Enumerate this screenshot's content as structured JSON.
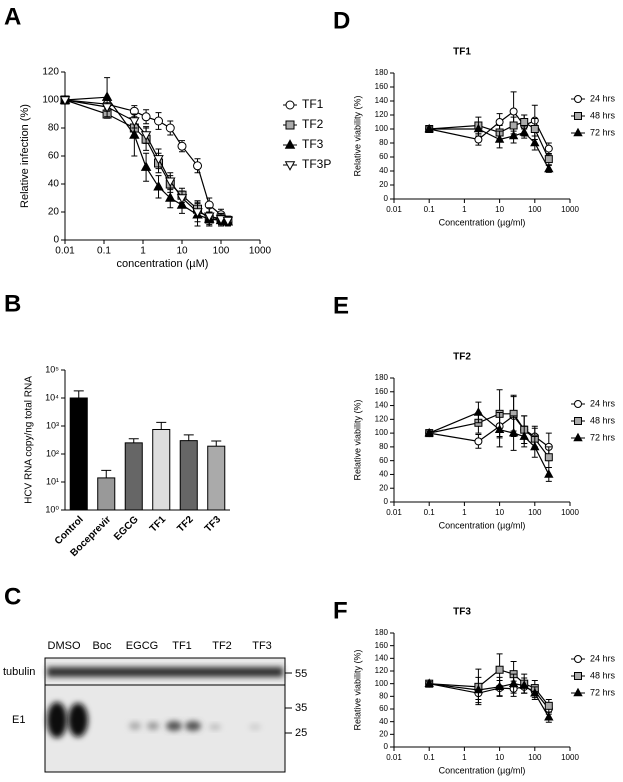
{
  "chart_data": [
    {
      "type": "line",
      "panel": "A",
      "x_label": "concentration (µM)",
      "y_label": "Relative infection (%)",
      "x_log": true,
      "xlim": [
        0.01,
        1000
      ],
      "xticks": [
        0.01,
        0.1,
        1,
        10,
        100,
        1000
      ],
      "ylim": [
        0,
        120
      ],
      "yticks": [
        0,
        20,
        40,
        60,
        80,
        100,
        120
      ],
      "legend": "right",
      "x": [
        0.01,
        0.12,
        0.6,
        1.2,
        2.5,
        5,
        10,
        25,
        50,
        100,
        150
      ],
      "series": [
        {
          "name": "TF1",
          "color": "#ffffff",
          "marker": "circle",
          "values": [
            100,
            97,
            92,
            88,
            85,
            80,
            67,
            53,
            25,
            18,
            13
          ],
          "errors": [
            2,
            3,
            4,
            5,
            6,
            5,
            4,
            5,
            5,
            4,
            3
          ]
        },
        {
          "name": "TF2",
          "color": "#aaaaaa",
          "marker": "square",
          "values": [
            100,
            90,
            80,
            72,
            55,
            40,
            32,
            22,
            15,
            15,
            14
          ],
          "errors": [
            2,
            3,
            6,
            8,
            7,
            6,
            5,
            6,
            5,
            4,
            3
          ]
        },
        {
          "name": "TF3",
          "color": "#000000",
          "marker": "triangle",
          "values": [
            100,
            102,
            75,
            52,
            38,
            30,
            25,
            18,
            15,
            14,
            13
          ],
          "errors": [
            2,
            14,
            15,
            10,
            8,
            7,
            6,
            8,
            5,
            4,
            3
          ]
        },
        {
          "name": "TF3P",
          "color": "#ffffff",
          "marker": "triangle-down",
          "values": [
            100,
            95,
            85,
            75,
            58,
            42,
            30,
            20,
            17,
            15,
            14
          ],
          "errors": [
            2,
            3,
            5,
            6,
            7,
            6,
            5,
            7,
            6,
            4,
            3
          ]
        }
      ]
    },
    {
      "type": "bar",
      "panel": "B",
      "y_label": "HCV RNA copy/ng total RNA",
      "y_log": true,
      "ylim": [
        1,
        100000
      ],
      "yticks": [
        {
          "value": 1,
          "label": "10⁰"
        },
        {
          "value": 10,
          "label": "10¹"
        },
        {
          "value": 100,
          "label": "10²"
        },
        {
          "value": 1000,
          "label": "10³"
        },
        {
          "value": 10000,
          "label": "10⁴"
        },
        {
          "value": 100000,
          "label": "10⁵"
        }
      ],
      "categories": [
        "Control",
        "Boceprevir",
        "EGCG",
        "TF1",
        "TF2",
        "TF3"
      ],
      "values": [
        10000,
        14,
        250,
        750,
        300,
        190
      ],
      "errors": [
        8000,
        12,
        100,
        600,
        180,
        100
      ],
      "colors": [
        "#000000",
        "#999999",
        "#666666",
        "#dddddd",
        "#666666",
        "#aaaaaa"
      ]
    },
    {
      "type": "line",
      "panel": "D",
      "title": "TF1",
      "x_label": "Concentration (µg/ml)",
      "y_label": "Relative viability (%)",
      "x_log": true,
      "xlim": [
        0.01,
        1000
      ],
      "xticks": [
        0.01,
        0.1,
        1,
        10,
        100,
        1000
      ],
      "ylim": [
        0,
        180
      ],
      "yticks": [
        0,
        20,
        40,
        60,
        80,
        100,
        120,
        140,
        160,
        180
      ],
      "legend": "right",
      "x": [
        0.1,
        2.5,
        10,
        25,
        50,
        100,
        250
      ],
      "series": [
        {
          "name": "24 hrs",
          "color": "#ffffff",
          "marker": "circle",
          "values": [
            100,
            85,
            110,
            125,
            105,
            112,
            72
          ],
          "errors": [
            3,
            8,
            12,
            28,
            15,
            22,
            8
          ]
        },
        {
          "name": "48 hrs",
          "color": "#aaaaaa",
          "marker": "square",
          "values": [
            100,
            105,
            95,
            105,
            110,
            100,
            57
          ],
          "errors": [
            3,
            12,
            10,
            12,
            10,
            15,
            8
          ]
        },
        {
          "name": "72 hrs",
          "color": "#000000",
          "marker": "triangle",
          "values": [
            100,
            100,
            85,
            90,
            95,
            80,
            43
          ],
          "errors": [
            3,
            10,
            12,
            10,
            8,
            10,
            5
          ]
        }
      ]
    },
    {
      "type": "line",
      "panel": "E",
      "title": "TF2",
      "x_label": "Concentration (µg/ml)",
      "y_label": "Relative viability (%)",
      "x_log": true,
      "xlim": [
        0.01,
        1000
      ],
      "xticks": [
        0.01,
        0.1,
        1,
        10,
        100,
        1000
      ],
      "ylim": [
        0,
        180
      ],
      "yticks": [
        0,
        20,
        40,
        60,
        80,
        100,
        120,
        140,
        160,
        180
      ],
      "legend": "right",
      "x": [
        0.1,
        2.5,
        10,
        25,
        50,
        100,
        250
      ],
      "series": [
        {
          "name": "24 hrs",
          "color": "#ffffff",
          "marker": "circle",
          "values": [
            100,
            88,
            110,
            125,
            105,
            95,
            80
          ],
          "errors": [
            3,
            10,
            15,
            30,
            20,
            15,
            20
          ]
        },
        {
          "name": "48 hrs",
          "color": "#aaaaaa",
          "marker": "square",
          "values": [
            100,
            115,
            128,
            128,
            105,
            92,
            65
          ],
          "errors": [
            3,
            15,
            35,
            25,
            20,
            15,
            15
          ]
        },
        {
          "name": "72 hrs",
          "color": "#000000",
          "marker": "triangle",
          "values": [
            100,
            130,
            105,
            100,
            95,
            80,
            40
          ],
          "errors": [
            3,
            15,
            25,
            25,
            15,
            15,
            10
          ]
        }
      ]
    },
    {
      "type": "line",
      "panel": "F",
      "title": "TF3",
      "x_label": "Concentration (µg/ml)",
      "y_label": "Relative viability (%)",
      "x_log": true,
      "xlim": [
        0.01,
        1000
      ],
      "xticks": [
        0.01,
        0.1,
        1,
        10,
        100,
        1000
      ],
      "ylim": [
        0,
        180
      ],
      "yticks": [
        0,
        20,
        40,
        60,
        80,
        100,
        120,
        140,
        160,
        180
      ],
      "legend": "right",
      "x": [
        0.1,
        2.5,
        10,
        25,
        50,
        100,
        250
      ],
      "series": [
        {
          "name": "24 hrs",
          "color": "#ffffff",
          "marker": "circle",
          "values": [
            100,
            85,
            93,
            92,
            95,
            88,
            60
          ],
          "errors": [
            3,
            10,
            12,
            12,
            10,
            10,
            8
          ]
        },
        {
          "name": "48 hrs",
          "color": "#aaaaaa",
          "marker": "square",
          "values": [
            100,
            95,
            122,
            115,
            100,
            93,
            65
          ],
          "errors": [
            3,
            28,
            25,
            20,
            15,
            12,
            10
          ]
        },
        {
          "name": "72 hrs",
          "color": "#000000",
          "marker": "triangle",
          "values": [
            100,
            90,
            95,
            100,
            97,
            85,
            47
          ],
          "errors": [
            3,
            20,
            15,
            15,
            12,
            10,
            8
          ]
        }
      ]
    }
  ],
  "blot": {
    "panel": "C",
    "lanes": [
      "DMSO",
      "Boc",
      "EGCG",
      "TF1",
      "TF2",
      "TF3"
    ],
    "rows": [
      "tubulin",
      "E1"
    ],
    "markers": [
      "55",
      "35",
      "25"
    ]
  }
}
